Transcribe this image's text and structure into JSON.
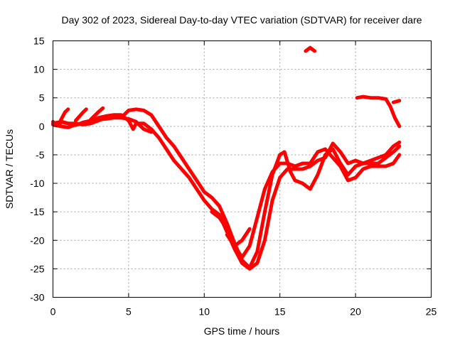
{
  "chart_data": {
    "type": "line",
    "title": "Day 302 of 2023, Sidereal Day-to-day VTEC variation (SDTVAR) for receiver dare",
    "xlabel": "GPS time / hours",
    "ylabel": "SDTVAR / TECUs",
    "xlim": [
      0,
      25
    ],
    "ylim": [
      -30,
      15
    ],
    "xticks": [
      "0",
      "5",
      "10",
      "15",
      "20",
      "25"
    ],
    "yticks": [
      "15",
      "10",
      "5",
      "0",
      "-5",
      "-10",
      "-15",
      "-20",
      "-25",
      "-30"
    ],
    "grid": true,
    "legend": "none",
    "color": "#ff0000",
    "series": [
      {
        "points": [
          [
            0,
            0.8
          ],
          [
            0.3,
            0.2
          ],
          [
            0.6,
            0.8
          ],
          [
            1.0,
            0.5
          ],
          [
            1.5,
            0.2
          ],
          [
            2.0,
            0.7
          ],
          [
            2.5,
            1.0
          ],
          [
            3.0,
            1.2
          ],
          [
            3.5,
            1.3
          ],
          [
            4.0,
            1.5
          ],
          [
            4.5,
            1.5
          ],
          [
            5.0,
            1.3
          ],
          [
            5.5,
            0.8
          ],
          [
            6.0,
            -0.5
          ],
          [
            6.5,
            -1.0
          ]
        ]
      },
      {
        "points": [
          [
            0,
            0.3
          ],
          [
            0.5,
            0.0
          ],
          [
            1.0,
            -0.2
          ],
          [
            1.5,
            0.3
          ],
          [
            2.0,
            0.5
          ],
          [
            2.5,
            0.8
          ],
          [
            3.0,
            1.5
          ],
          [
            3.5,
            1.8
          ],
          [
            4.0,
            2.0
          ],
          [
            4.5,
            2.0
          ],
          [
            5.0,
            1.0
          ],
          [
            5.3,
            -0.5
          ],
          [
            5.5,
            0.5
          ],
          [
            6.0,
            0.5
          ],
          [
            6.5,
            -0.5
          ],
          [
            7.0,
            -2.0
          ],
          [
            7.5,
            -4.0
          ],
          [
            8.0,
            -6.0
          ],
          [
            8.5,
            -7.5
          ],
          [
            9.0,
            -9.0
          ],
          [
            9.5,
            -11.0
          ],
          [
            10.0,
            -13.0
          ],
          [
            10.5,
            -14.5
          ],
          [
            11.0,
            -15.5
          ],
          [
            11.5,
            -18.5
          ],
          [
            12.0,
            -21.5
          ],
          [
            12.5,
            -24.0
          ],
          [
            13.0,
            -25.0
          ],
          [
            13.5,
            -24.0
          ],
          [
            14.0,
            -20.0
          ],
          [
            14.5,
            -13.0
          ],
          [
            15.0,
            -9.0
          ],
          [
            15.5,
            -7.5
          ],
          [
            16.0,
            -7.5
          ],
          [
            16.5,
            -7.5
          ],
          [
            17.0,
            -7.0
          ],
          [
            17.5,
            -6.0
          ],
          [
            18.0,
            -5.5
          ],
          [
            18.5,
            -3.0
          ],
          [
            19.0,
            -4.5
          ],
          [
            19.5,
            -6.5
          ],
          [
            20.0,
            -6.0
          ],
          [
            20.5,
            -6.5
          ],
          [
            21.0,
            -6.5
          ],
          [
            21.5,
            -6.5
          ],
          [
            22.0,
            -5.5
          ],
          [
            22.5,
            -4.5
          ],
          [
            22.9,
            -3.5
          ]
        ]
      },
      {
        "points": [
          [
            0,
            0.5
          ],
          [
            0.5,
            0.8
          ],
          [
            1.0,
            0.5
          ],
          [
            1.5,
            0.5
          ],
          [
            2.0,
            0.3
          ],
          [
            2.5,
            0.5
          ],
          [
            3.0,
            1.0
          ],
          [
            3.5,
            1.5
          ],
          [
            4.0,
            1.8
          ],
          [
            4.5,
            1.5
          ],
          [
            5.0,
            2.8
          ],
          [
            5.5,
            3.0
          ],
          [
            6.0,
            2.8
          ],
          [
            6.5,
            2.0
          ],
          [
            7.0,
            0.0
          ],
          [
            7.5,
            -2.0
          ],
          [
            8.0,
            -3.5
          ],
          [
            8.5,
            -5.5
          ],
          [
            9.0,
            -7.5
          ],
          [
            9.5,
            -9.5
          ],
          [
            10.0,
            -11.5
          ],
          [
            10.5,
            -12.5
          ],
          [
            11.0,
            -14.0
          ],
          [
            11.5,
            -17.0
          ],
          [
            12.0,
            -20.5
          ],
          [
            12.5,
            -23.5
          ],
          [
            13.0,
            -24.8
          ],
          [
            13.5,
            -22.0
          ],
          [
            14.0,
            -15.0
          ],
          [
            14.5,
            -8.5
          ],
          [
            15.0,
            -5.0
          ],
          [
            15.3,
            -4.5
          ],
          [
            15.7,
            -8.0
          ],
          [
            16.0,
            -9.5
          ],
          [
            16.5,
            -10.0
          ],
          [
            17.0,
            -11.0
          ],
          [
            17.5,
            -8.5
          ],
          [
            18.0,
            -5.0
          ],
          [
            18.5,
            -4.0
          ],
          [
            19.0,
            -6.5
          ],
          [
            19.5,
            -8.5
          ],
          [
            20.0,
            -7.0
          ],
          [
            20.5,
            -6.5
          ],
          [
            21.0,
            -6.0
          ],
          [
            21.5,
            -5.5
          ],
          [
            22.0,
            -5.0
          ],
          [
            22.5,
            -3.5
          ],
          [
            22.9,
            -2.8
          ]
        ]
      },
      {
        "points": [
          [
            10.5,
            -15.0
          ],
          [
            11.0,
            -16.0
          ],
          [
            11.5,
            -18.0
          ],
          [
            12.0,
            -21.0
          ],
          [
            12.5,
            -23.0
          ],
          [
            13.0,
            -21.0
          ],
          [
            13.5,
            -16.0
          ],
          [
            14.0,
            -11.0
          ],
          [
            14.5,
            -8.0
          ],
          [
            15.0,
            -6.5
          ],
          [
            15.5,
            -6.5
          ],
          [
            16.0,
            -7.0
          ],
          [
            16.5,
            -6.5
          ],
          [
            17.0,
            -6.5
          ],
          [
            17.5,
            -4.5
          ],
          [
            18.0,
            -4.0
          ],
          [
            18.5,
            -5.5
          ],
          [
            19.0,
            -7.0
          ],
          [
            19.5,
            -9.5
          ],
          [
            20.0,
            -9.0
          ],
          [
            20.5,
            -7.5
          ],
          [
            21.0,
            -7.0
          ],
          [
            21.5,
            -7.0
          ],
          [
            22.0,
            -7.0
          ],
          [
            22.5,
            -6.5
          ],
          [
            22.9,
            -5.0
          ]
        ]
      },
      {
        "points": [
          [
            11.5,
            -19.0
          ],
          [
            12.0,
            -21.0
          ],
          [
            12.5,
            -20.0
          ],
          [
            13.0,
            -18.0
          ]
        ]
      },
      {
        "points": [
          [
            16.7,
            13.2
          ],
          [
            17.0,
            13.8
          ],
          [
            17.3,
            13.2
          ]
        ]
      },
      {
        "points": [
          [
            20.1,
            5.0
          ],
          [
            20.5,
            5.2
          ],
          [
            21.0,
            5.0
          ],
          [
            21.5,
            5.0
          ],
          [
            22.0,
            4.8
          ],
          [
            22.3,
            3.5
          ],
          [
            22.6,
            1.5
          ],
          [
            22.9,
            0.0
          ]
        ]
      },
      {
        "points": [
          [
            22.5,
            4.2
          ],
          [
            22.9,
            4.5
          ]
        ]
      },
      {
        "points": [
          [
            0.5,
            1.0
          ],
          [
            0.8,
            2.5
          ],
          [
            1.0,
            3.0
          ]
        ]
      },
      {
        "points": [
          [
            1.5,
            1.0
          ],
          [
            2.0,
            2.5
          ],
          [
            2.2,
            3.0
          ]
        ]
      },
      {
        "points": [
          [
            2.5,
            1.2
          ],
          [
            3.0,
            2.5
          ],
          [
            3.3,
            3.2
          ]
        ]
      }
    ]
  }
}
